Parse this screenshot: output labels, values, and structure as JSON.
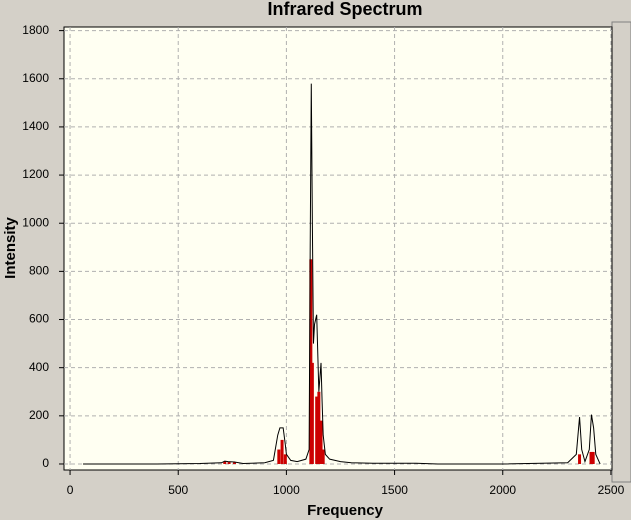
{
  "chart_data": {
    "type": "line",
    "title": "Infrared Spectrum",
    "x_label": "Frequency",
    "y_label": "Intensity",
    "xlim": [
      -28,
      2505
    ],
    "ylim": [
      -25,
      1815
    ],
    "xticks": [
      0,
      500,
      1000,
      1500,
      2000,
      2500
    ],
    "yticks": [
      0,
      200,
      400,
      600,
      800,
      1000,
      1200,
      1400,
      1600,
      1800
    ],
    "grid": true,
    "series": [
      {
        "type": "line",
        "color": "#000000",
        "x": [
          60,
          400,
          600,
          700,
          715,
          730,
          760,
          800,
          900,
          940,
          960,
          970,
          985,
          995,
          1000,
          1020,
          1050,
          1090,
          1105,
          1110,
          1115,
          1120,
          1125,
          1130,
          1140,
          1150,
          1160,
          1165,
          1170,
          1180,
          1200,
          1250,
          1300,
          1400,
          1600,
          1700,
          2000,
          2300,
          2340,
          2355,
          2365,
          2380,
          2400,
          2410,
          2420,
          2430,
          2450
        ],
        "values": [
          0,
          0,
          2,
          5,
          12,
          10,
          8,
          2,
          5,
          15,
          120,
          150,
          150,
          80,
          40,
          15,
          10,
          20,
          60,
          900,
          1580,
          1000,
          500,
          580,
          620,
          300,
          420,
          260,
          120,
          40,
          20,
          10,
          5,
          3,
          3,
          0,
          0,
          5,
          40,
          195,
          60,
          10,
          60,
          205,
          150,
          40,
          0
        ]
      },
      {
        "type": "stick",
        "color": "#cc0000",
        "x": [
          715,
          735,
          760,
          965,
          980,
          995,
          1113,
          1120,
          1140,
          1150,
          1160,
          1170,
          2355,
          2408,
          2418
        ],
        "values": [
          10,
          8,
          6,
          60,
          100,
          40,
          850,
          420,
          280,
          300,
          180,
          60,
          40,
          50,
          50
        ]
      }
    ]
  }
}
